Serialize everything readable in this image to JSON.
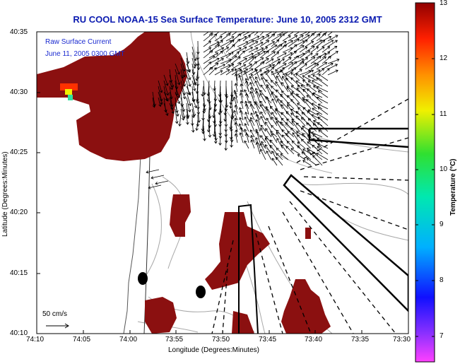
{
  "title": "RU COOL  NOAA-15  Sea Surface Temperature:  June 10, 2005 2312 GMT",
  "legend": {
    "line1": "Raw Surface Current",
    "line2": "June 11, 2005 0300 GMT"
  },
  "axes": {
    "xlabel": "Longitude (Degrees:Minutes)",
    "ylabel": "Latitude (Degrees:Minutes)",
    "x_ticks": [
      "74:10",
      "74:05",
      "74:00",
      "73:55",
      "73:50",
      "73:45",
      "73:40",
      "73:35",
      "73:30"
    ],
    "y_ticks": [
      "40:35",
      "40:30",
      "40:25",
      "40:20",
      "40:15",
      "40:10"
    ]
  },
  "colorbar": {
    "label": "Temperature (°C)",
    "ticks": [
      "13",
      "12",
      "11",
      "10",
      "9",
      "8",
      "7"
    ],
    "range": [
      6.5,
      13
    ]
  },
  "scale": {
    "label": "50 cm/s"
  },
  "colors": {
    "title": "#0a1ab0",
    "land": "#ffffff",
    "sst_warm": "#8b1010",
    "vectors": "#000000",
    "contours": "#a8a8a8"
  }
}
